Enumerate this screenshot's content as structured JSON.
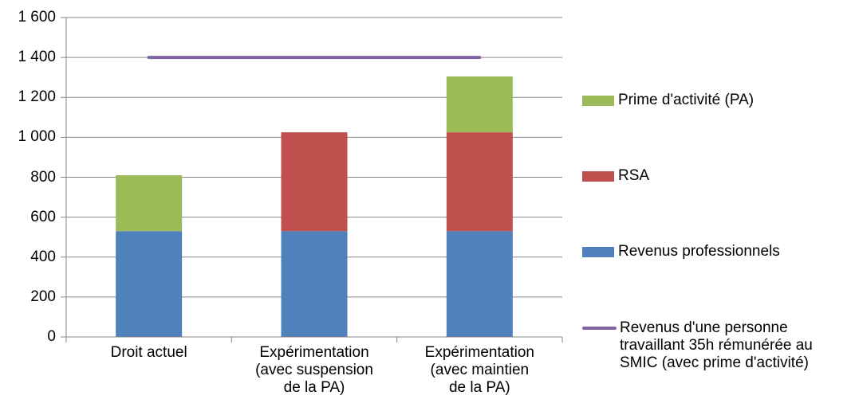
{
  "chart_data": {
    "type": "bar",
    "stacked": true,
    "title": "",
    "xlabel": "",
    "ylabel": "",
    "categories": [
      "Droit actuel",
      "Expérimentation\n(avec suspension\nde la PA)",
      "Expérimentation\n(avec maintien\nde la PA)"
    ],
    "series": [
      {
        "name": "Revenus professionnels",
        "color": "#4F81BD",
        "values": [
          530,
          530,
          530
        ]
      },
      {
        "name": "RSA",
        "color": "#C0504D",
        "values": [
          0,
          495,
          495
        ]
      },
      {
        "name": "Prime d'activité (PA)",
        "color": "#9BBB59",
        "values": [
          280,
          0,
          280
        ]
      }
    ],
    "line_series": {
      "name": "Revenus d'une personne travaillant 35h rémunérée au SMIC (avec prime d'activité)",
      "color": "#8064A2",
      "values": [
        1400,
        1400,
        1400
      ]
    },
    "ylim": [
      0,
      1600
    ],
    "ytick_step": 200,
    "ytick_labels": [
      "0",
      "200",
      "400",
      "600",
      "800",
      "1 000",
      "1 200",
      "1 400",
      "1 600"
    ],
    "grid": true,
    "legend_position": "right"
  },
  "legend": {
    "items": [
      {
        "label": "Prime d'activité (PA)",
        "color": "#9BBB59",
        "marker": "box"
      },
      {
        "label": "RSA",
        "color": "#C0504D",
        "marker": "box"
      },
      {
        "label": "Revenus professionnels",
        "color": "#4F81BD",
        "marker": "box"
      },
      {
        "label": "Revenus d'une personne\ntravaillant 35h rémunérée au\nSMIC (avec prime d'activité)",
        "color": "#8064A2",
        "marker": "line"
      }
    ]
  },
  "style": {
    "gridline_color": "#878787",
    "axis_color": "#878787",
    "text_color": "#000000",
    "background": "#FFFFFF"
  }
}
